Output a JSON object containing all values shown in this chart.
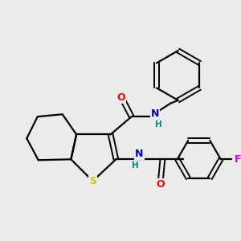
{
  "background_color": "#ebebeb",
  "bond_color": "#000000",
  "atom_colors": {
    "O": "#ff0000",
    "N": "#0000cc",
    "S": "#cccc00",
    "F": "#cc00cc",
    "H": "#008888",
    "C": "#000000"
  },
  "figsize": [
    3.0,
    3.0
  ],
  "dpi": 100
}
